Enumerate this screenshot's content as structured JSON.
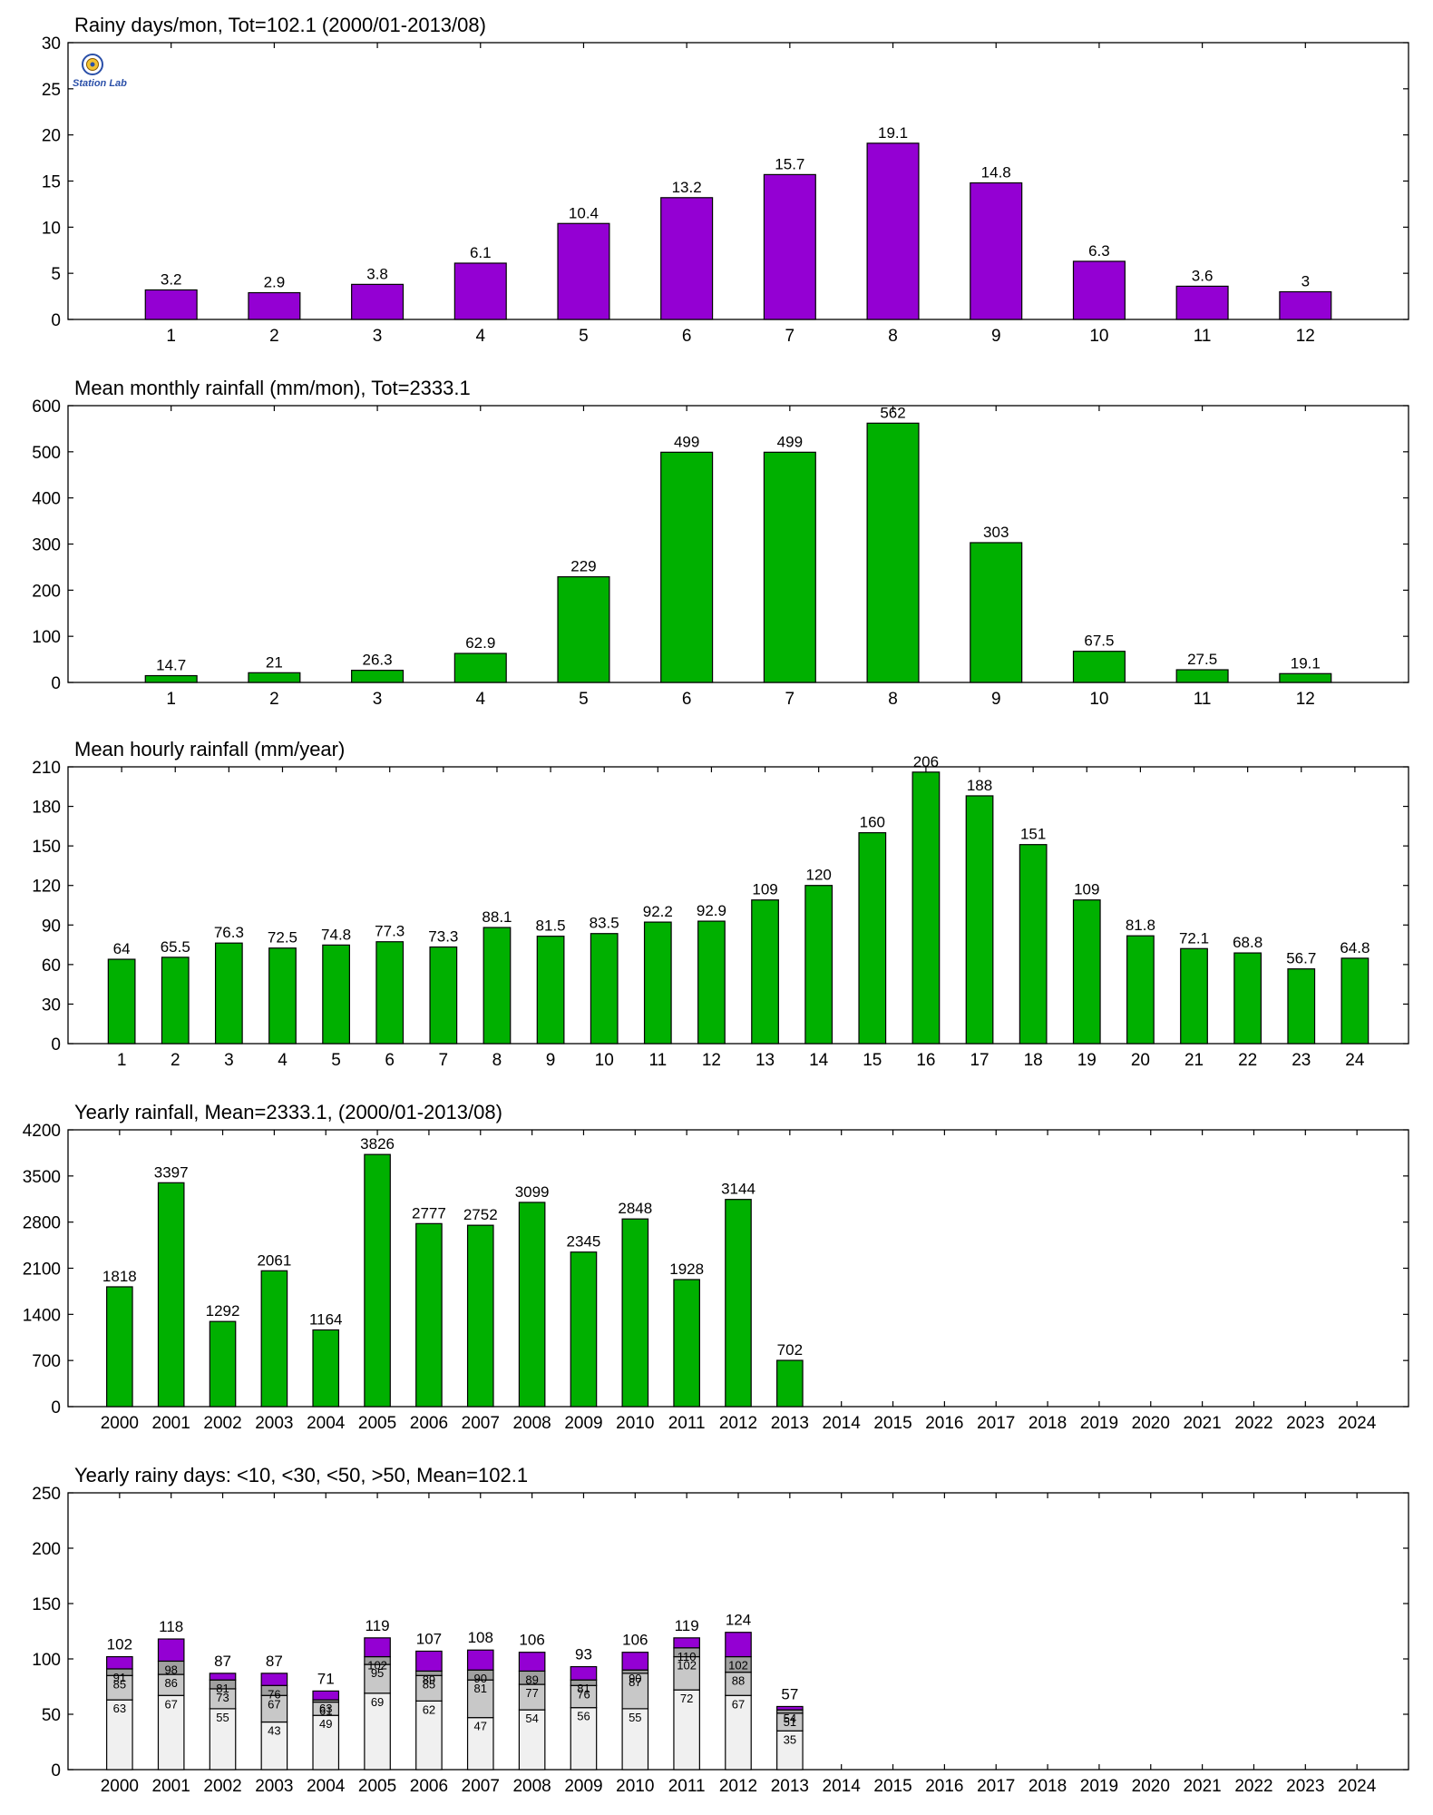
{
  "colors": {
    "purple": "#9400d3",
    "green": "#00b000",
    "light": "#f0f0f0",
    "gray1": "#c8c8c8",
    "gray2": "#a0a0a0",
    "axis": "#000000"
  },
  "logo": {
    "icon": "station-lab-logo",
    "text": "Station Lab"
  },
  "chart_data": [
    {
      "id": "rainy-days-monthly",
      "type": "bar",
      "title": "Rainy days/mon, Tot=102.1 (2000/01-2013/08)",
      "categories": [
        "1",
        "2",
        "3",
        "4",
        "5",
        "6",
        "7",
        "8",
        "9",
        "10",
        "11",
        "12"
      ],
      "values": [
        3.2,
        2.9,
        3.8,
        6.1,
        10.4,
        13.2,
        15.7,
        19.1,
        14.8,
        6.3,
        3.6,
        3
      ],
      "labels": [
        "3.2",
        "2.9",
        "3.8",
        "6.1",
        "10.4",
        "13.2",
        "15.7",
        "19.1",
        "14.8",
        "6.3",
        "3.6",
        "3"
      ],
      "yticks": [
        0,
        5,
        10,
        15,
        20,
        25,
        30
      ],
      "ylim": [
        0,
        30
      ],
      "color": "purple",
      "grid": false
    },
    {
      "id": "mean-monthly-rainfall",
      "type": "bar",
      "title": "Mean monthly rainfall (mm/mon), Tot=2333.1",
      "categories": [
        "1",
        "2",
        "3",
        "4",
        "5",
        "6",
        "7",
        "8",
        "9",
        "10",
        "11",
        "12"
      ],
      "values": [
        14.7,
        21,
        26.3,
        62.9,
        229,
        499,
        499,
        562,
        303,
        67.5,
        27.5,
        19.1
      ],
      "labels": [
        "14.7",
        "21",
        "26.3",
        "62.9",
        "229",
        "499",
        "499",
        "562",
        "303",
        "67.5",
        "27.5",
        "19.1"
      ],
      "yticks": [
        0,
        100,
        200,
        300,
        400,
        500,
        600
      ],
      "ylim": [
        0,
        600
      ],
      "color": "green",
      "grid": false
    },
    {
      "id": "mean-hourly-rainfall",
      "type": "bar",
      "title": "Mean hourly rainfall (mm/year)",
      "categories": [
        "1",
        "2",
        "3",
        "4",
        "5",
        "6",
        "7",
        "8",
        "9",
        "10",
        "11",
        "12",
        "13",
        "14",
        "15",
        "16",
        "17",
        "18",
        "19",
        "20",
        "21",
        "22",
        "23",
        "24"
      ],
      "values": [
        64,
        65.5,
        76.3,
        72.5,
        74.8,
        77.3,
        73.3,
        88.1,
        81.5,
        83.5,
        92.2,
        92.9,
        109,
        120,
        160,
        206,
        188,
        151,
        109,
        81.8,
        72.1,
        68.8,
        56.7,
        64.8
      ],
      "labels": [
        "64",
        "65.5",
        "76.3",
        "72.5",
        "74.8",
        "77.3",
        "73.3",
        "88.1",
        "81.5",
        "83.5",
        "92.2",
        "92.9",
        "109",
        "120",
        "160",
        "206",
        "188",
        "151",
        "109",
        "81.8",
        "72.1",
        "68.8",
        "56.7",
        "64.8"
      ],
      "yticks": [
        0,
        30,
        60,
        90,
        120,
        150,
        180,
        210
      ],
      "ylim": [
        0,
        210
      ],
      "color": "green",
      "grid": false
    },
    {
      "id": "yearly-rainfall",
      "type": "bar",
      "title": "Yearly rainfall, Mean=2333.1, (2000/01-2013/08)",
      "categories": [
        "2000",
        "2001",
        "2002",
        "2003",
        "2004",
        "2005",
        "2006",
        "2007",
        "2008",
        "2009",
        "2010",
        "2011",
        "2012",
        "2013",
        "2014",
        "2015",
        "2016",
        "2017",
        "2018",
        "2019",
        "2020",
        "2021",
        "2022",
        "2023",
        "2024"
      ],
      "values": [
        1818,
        3397,
        1292,
        2061,
        1164,
        3826,
        2777,
        2752,
        3099,
        2345,
        2848,
        1928,
        3144,
        702
      ],
      "labels": [
        "1818",
        "3397",
        "1292",
        "2061",
        "1164",
        "3826",
        "2777",
        "2752",
        "3099",
        "2345",
        "2848",
        "1928",
        "3144",
        "702"
      ],
      "yticks": [
        0,
        700,
        1400,
        2100,
        2800,
        3500,
        4200
      ],
      "ylim": [
        0,
        4200
      ],
      "color": "green",
      "grid": false
    },
    {
      "id": "yearly-rainy-days",
      "type": "bar",
      "stacked": true,
      "title": "Yearly rainy days: <10, <30, <50, >50, Mean=102.1",
      "categories": [
        "2000",
        "2001",
        "2002",
        "2003",
        "2004",
        "2005",
        "2006",
        "2007",
        "2008",
        "2009",
        "2010",
        "2011",
        "2012",
        "2013",
        "2014",
        "2015",
        "2016",
        "2017",
        "2018",
        "2019",
        "2020",
        "2021",
        "2022",
        "2023",
        "2024"
      ],
      "cumulative": {
        "lt10": [
          63,
          67,
          55,
          43,
          49,
          69,
          62,
          47,
          54,
          56,
          55,
          72,
          67,
          35
        ],
        "lt30": [
          85,
          86,
          73,
          67,
          61,
          95,
          85,
          81,
          77,
          76,
          87,
          102,
          88,
          51
        ],
        "lt50": [
          91,
          98,
          81,
          76,
          63,
          102,
          89,
          90,
          89,
          81,
          90,
          110,
          102,
          54
        ],
        "total": [
          102,
          118,
          87,
          87,
          71,
          119,
          107,
          108,
          106,
          93,
          106,
          119,
          124,
          57
        ]
      },
      "labels": {
        "lt10": [
          "63",
          "67",
          "55",
          "43",
          "49",
          "69",
          "62",
          "47",
          "54",
          "56",
          "55",
          "72",
          "67",
          "35"
        ],
        "lt30": [
          "85",
          "86",
          "73",
          "67",
          "61",
          "95",
          "85",
          "81",
          "77",
          "76",
          "87",
          "102",
          "88",
          "51"
        ],
        "lt50": [
          "91",
          "98",
          "81",
          "76",
          "63",
          "102",
          "89",
          "90",
          "89",
          "81",
          "90",
          "110",
          "102",
          "54"
        ],
        "total": [
          "102",
          "118",
          "87",
          "87",
          "71",
          "119",
          "107",
          "108",
          "106",
          "93",
          "106",
          "119",
          "124",
          "57"
        ]
      },
      "yticks": [
        0,
        50,
        100,
        150,
        200,
        250
      ],
      "ylim": [
        0,
        250
      ],
      "grid": false
    }
  ]
}
